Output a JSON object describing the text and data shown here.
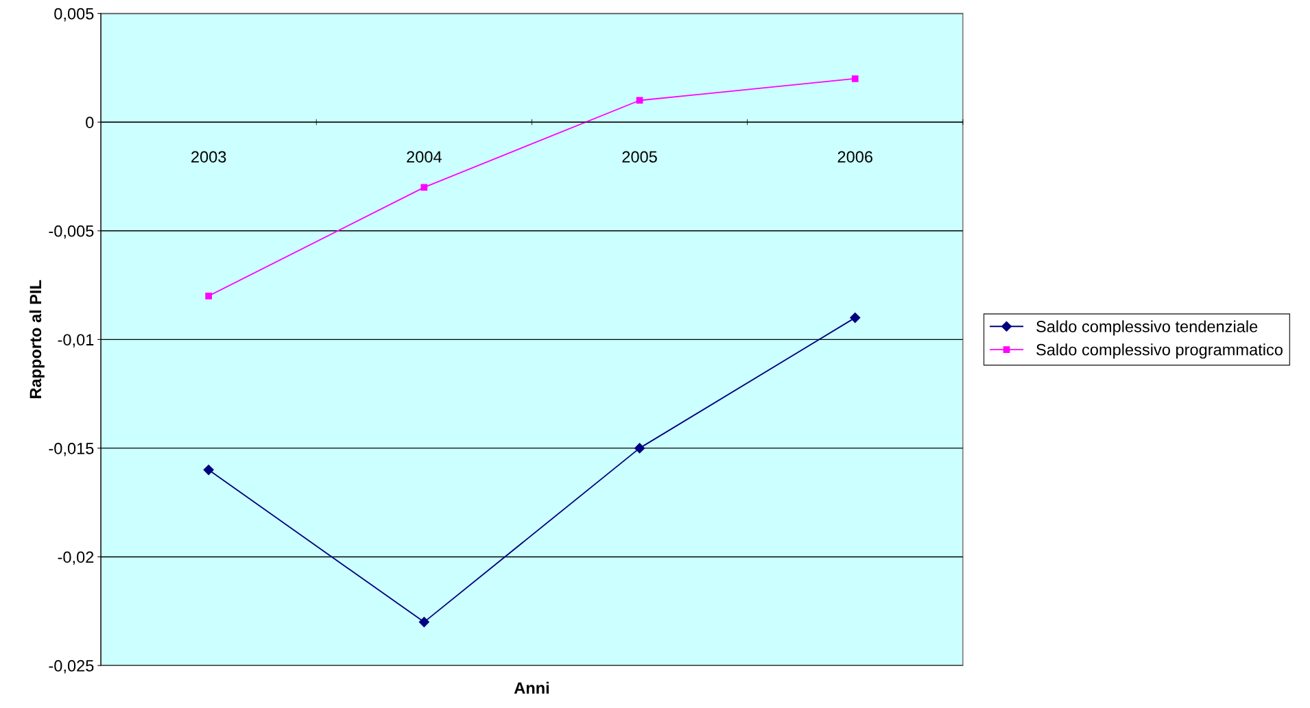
{
  "chart_data": {
    "type": "line",
    "xlabel": "Anni",
    "ylabel": "Rapporto al PIL",
    "categories": [
      "2003",
      "2004",
      "2005",
      "2006"
    ],
    "series": [
      {
        "name": "Saldo complessivo tendenziale",
        "color": "#000080",
        "marker": "diamond",
        "values": [
          -0.016,
          -0.023,
          -0.015,
          -0.009
        ]
      },
      {
        "name": "Saldo complessivo programmatico",
        "color": "#ff00ff",
        "marker": "square",
        "values": [
          -0.008,
          -0.003,
          0.001,
          0.002
        ]
      }
    ],
    "ylim": [
      -0.025,
      0.005
    ],
    "yticks": [
      {
        "value": -0.025,
        "label": "-0,025"
      },
      {
        "value": -0.02,
        "label": "-0,02"
      },
      {
        "value": -0.015,
        "label": "-0,015"
      },
      {
        "value": -0.01,
        "label": "-0,01"
      },
      {
        "value": -0.005,
        "label": "-0,005"
      },
      {
        "value": 0,
        "label": "0"
      },
      {
        "value": 0.005,
        "label": "0,005"
      }
    ],
    "grid": "y",
    "legend": "right",
    "line_style": "solid"
  }
}
